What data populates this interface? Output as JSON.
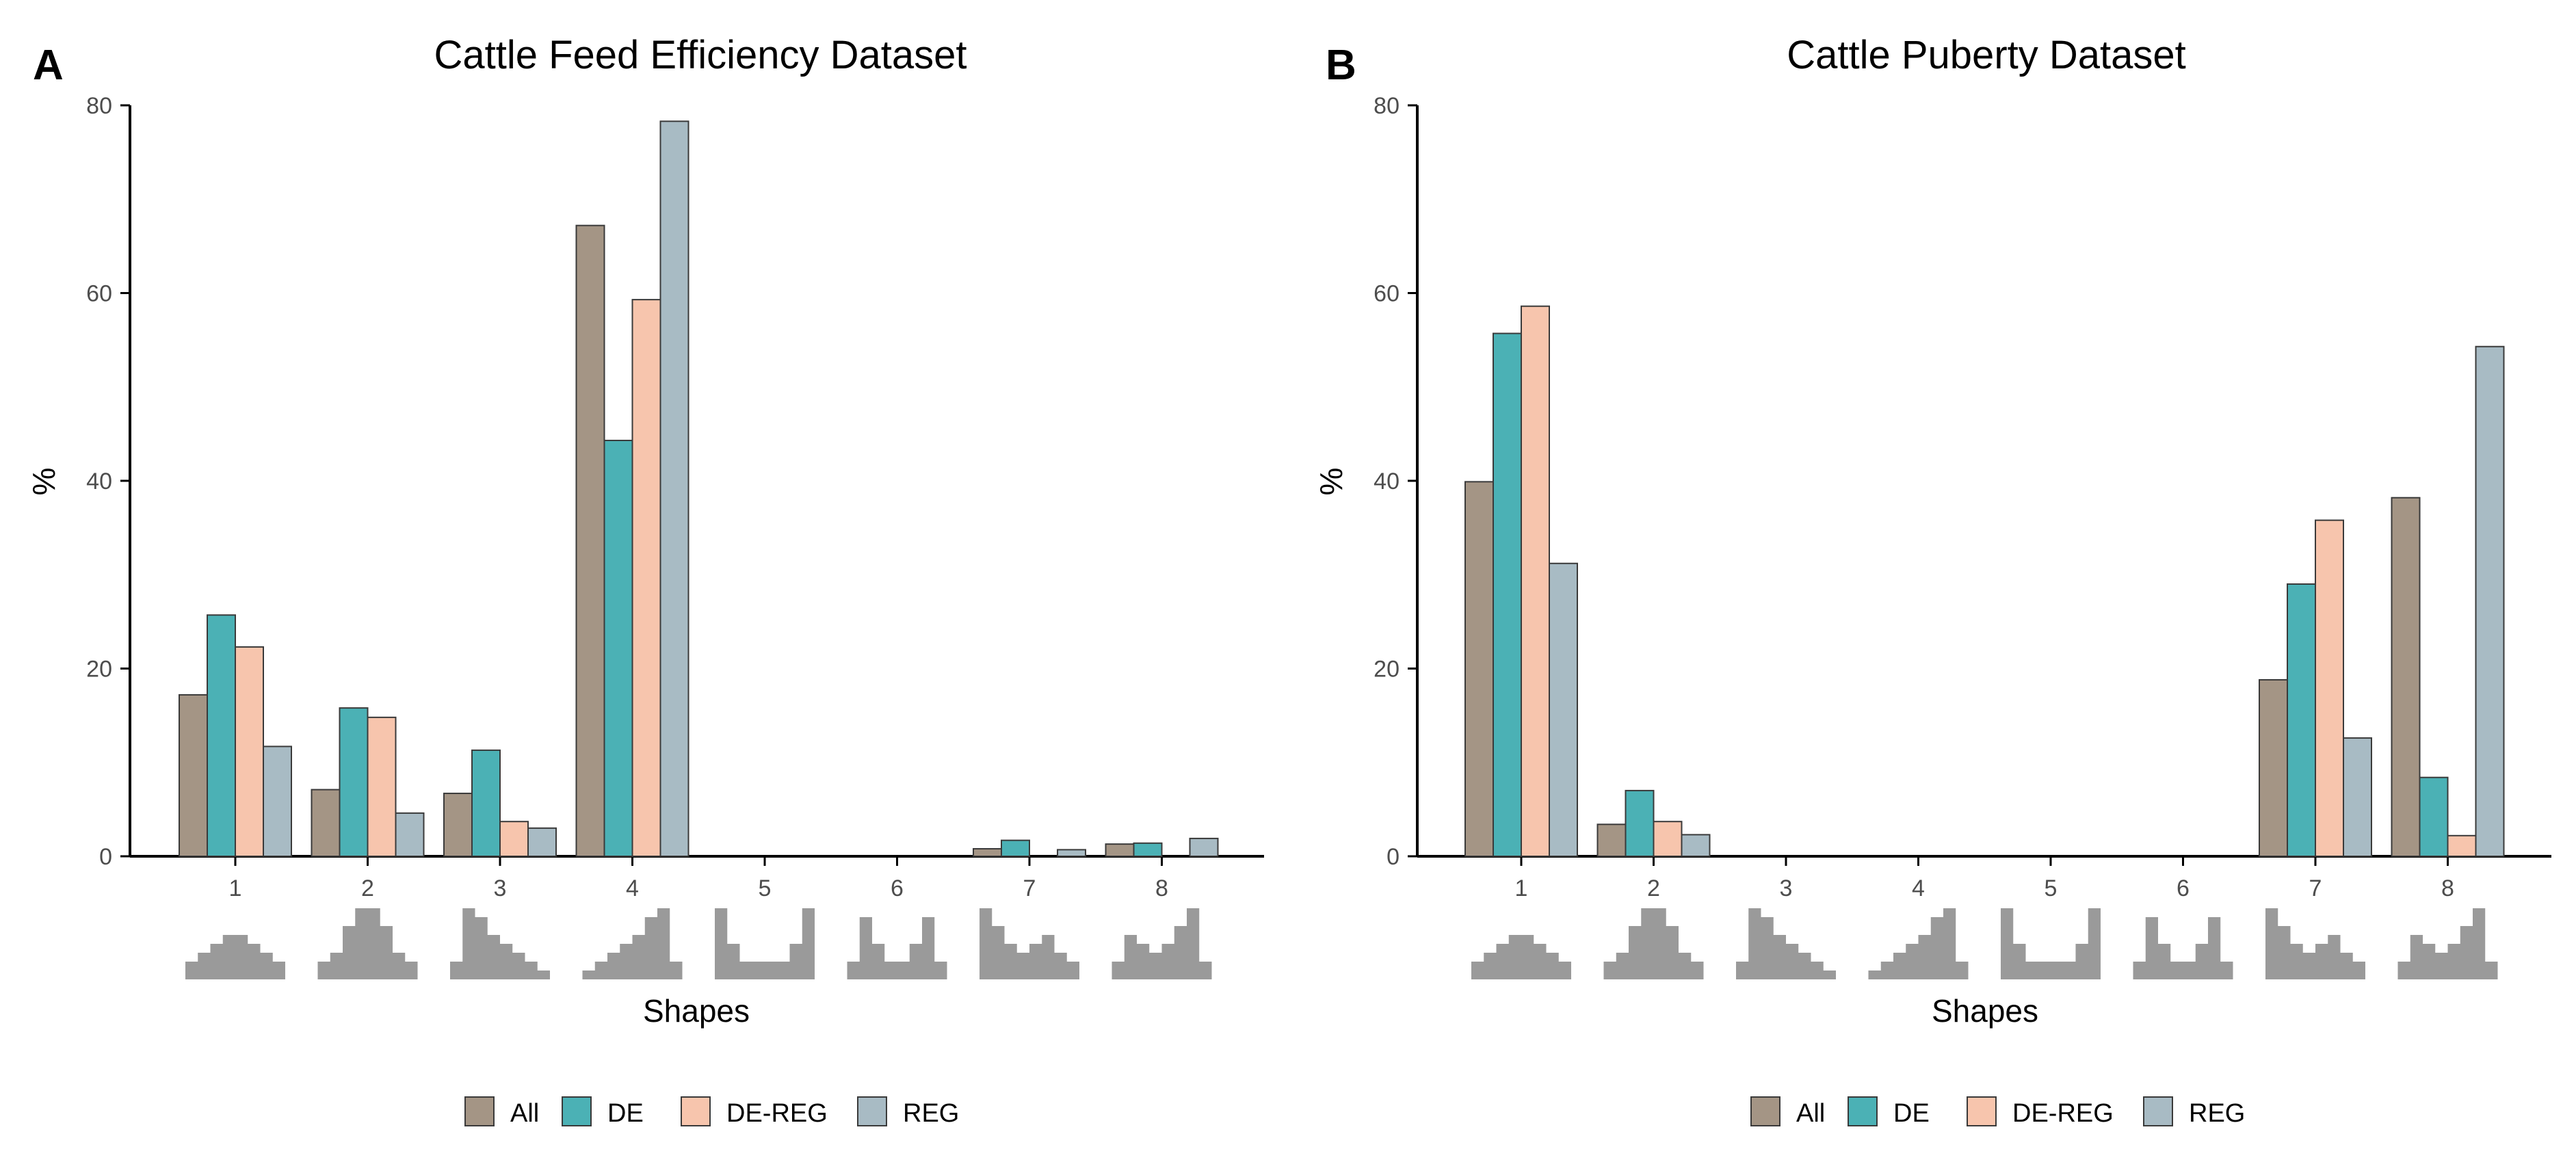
{
  "colors": {
    "All": "#a49585",
    "DE": "#4bb1b5",
    "DE-REG": "#f7c5ad",
    "REG": "#a8bbc4",
    "bar_stroke": "#3a3a3a",
    "shape_fill": "#9a9a9a",
    "axis": "#000000"
  },
  "legend": [
    "All",
    "DE",
    "DE-REG",
    "REG"
  ],
  "shape_icons": [
    [
      1,
      2,
      3,
      4,
      4,
      3,
      2,
      1
    ],
    [
      1,
      2,
      5,
      7,
      7,
      5,
      2,
      1
    ],
    [
      1,
      7,
      6,
      4,
      3,
      2,
      1,
      0
    ],
    [
      0,
      1,
      2,
      3,
      4,
      6,
      7,
      1
    ],
    [
      7,
      3,
      1,
      1,
      1,
      1,
      3,
      7
    ],
    [
      1,
      6,
      3,
      1,
      1,
      3,
      6,
      1
    ],
    [
      7,
      5,
      3,
      2,
      3,
      4,
      2,
      1
    ],
    [
      1,
      4,
      3,
      2,
      3,
      5,
      7,
      1
    ]
  ],
  "chart_data": [
    {
      "type": "bar",
      "panel": "A",
      "title": "Cattle Feed Efficiency Dataset",
      "xlabel": "Shapes",
      "ylabel": "%",
      "categories": [
        "1",
        "2",
        "3",
        "4",
        "5",
        "6",
        "7",
        "8"
      ],
      "ylim": [
        0,
        80
      ],
      "yticks": [
        0,
        20,
        40,
        60,
        80
      ],
      "series": [
        {
          "name": "All",
          "values": [
            17.2,
            7.1,
            6.7,
            67.2,
            0,
            0,
            0.8,
            1.3
          ]
        },
        {
          "name": "DE",
          "values": [
            25.7,
            15.8,
            11.3,
            44.3,
            0,
            0,
            1.7,
            1.4
          ]
        },
        {
          "name": "DE-REG",
          "values": [
            22.3,
            14.8,
            3.7,
            59.3,
            0,
            0,
            0,
            0
          ]
        },
        {
          "name": "REG",
          "values": [
            11.7,
            4.6,
            3.0,
            78.3,
            0,
            0,
            0.7,
            1.9
          ]
        }
      ],
      "legend_position": "bottom"
    },
    {
      "type": "bar",
      "panel": "B",
      "title": "Cattle Puberty Dataset",
      "xlabel": "Shapes",
      "ylabel": "%",
      "categories": [
        "1",
        "2",
        "3",
        "4",
        "5",
        "6",
        "7",
        "8"
      ],
      "ylim": [
        0,
        80
      ],
      "yticks": [
        0,
        20,
        40,
        60,
        80
      ],
      "series": [
        {
          "name": "All",
          "values": [
            39.9,
            3.4,
            0,
            0,
            0,
            0,
            18.8,
            38.2
          ]
        },
        {
          "name": "DE",
          "values": [
            55.7,
            7.0,
            0,
            0,
            0,
            0,
            29.0,
            8.4
          ]
        },
        {
          "name": "DE-REG",
          "values": [
            58.6,
            3.7,
            0,
            0,
            0,
            0,
            35.8,
            2.2
          ]
        },
        {
          "name": "REG",
          "values": [
            31.2,
            2.3,
            0,
            0,
            0,
            0,
            12.6,
            54.3
          ]
        }
      ],
      "legend_position": "bottom"
    }
  ]
}
